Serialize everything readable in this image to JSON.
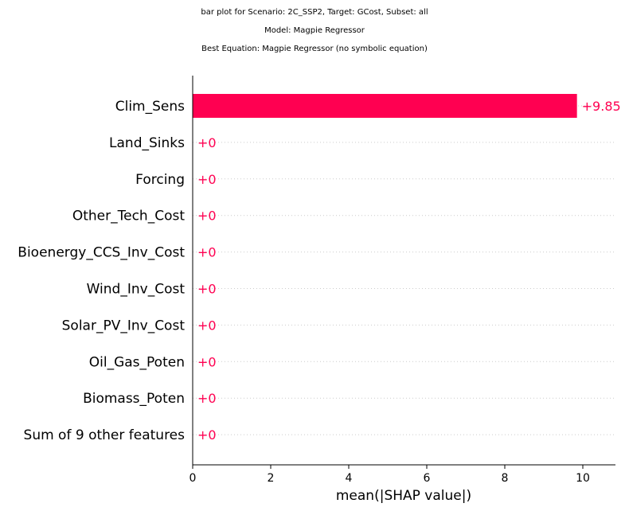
{
  "title_lines": [
    "bar plot for Scenario: 2C_SSP2, Target: GCost, Subset: all",
    "Model: Magpie Regressor",
    "Best Equation: Magpie Regressor (no symbolic equation)"
  ],
  "chart_data": {
    "type": "bar",
    "orientation": "horizontal",
    "categories": [
      "Clim_Sens",
      "Land_Sinks",
      "Forcing",
      "Other_Tech_Cost",
      "Bioenergy_CCS_Inv_Cost",
      "Wind_Inv_Cost",
      "Solar_PV_Inv_Cost",
      "Oil_Gas_Poten",
      "Biomass_Poten",
      "Sum of 9 other features"
    ],
    "values": [
      9.85,
      0,
      0,
      0,
      0,
      0,
      0,
      0,
      0,
      0
    ],
    "value_labels": [
      "+9.85",
      "+0",
      "+0",
      "+0",
      "+0",
      "+0",
      "+0",
      "+0",
      "+0",
      "+0"
    ],
    "xlabel": "mean(|SHAP value|)",
    "xlim": [
      0,
      10.85
    ],
    "xticks": [
      0,
      2,
      4,
      6,
      8,
      10
    ],
    "bar_color": "#ff0051",
    "gridline_color": "#cccccc"
  }
}
